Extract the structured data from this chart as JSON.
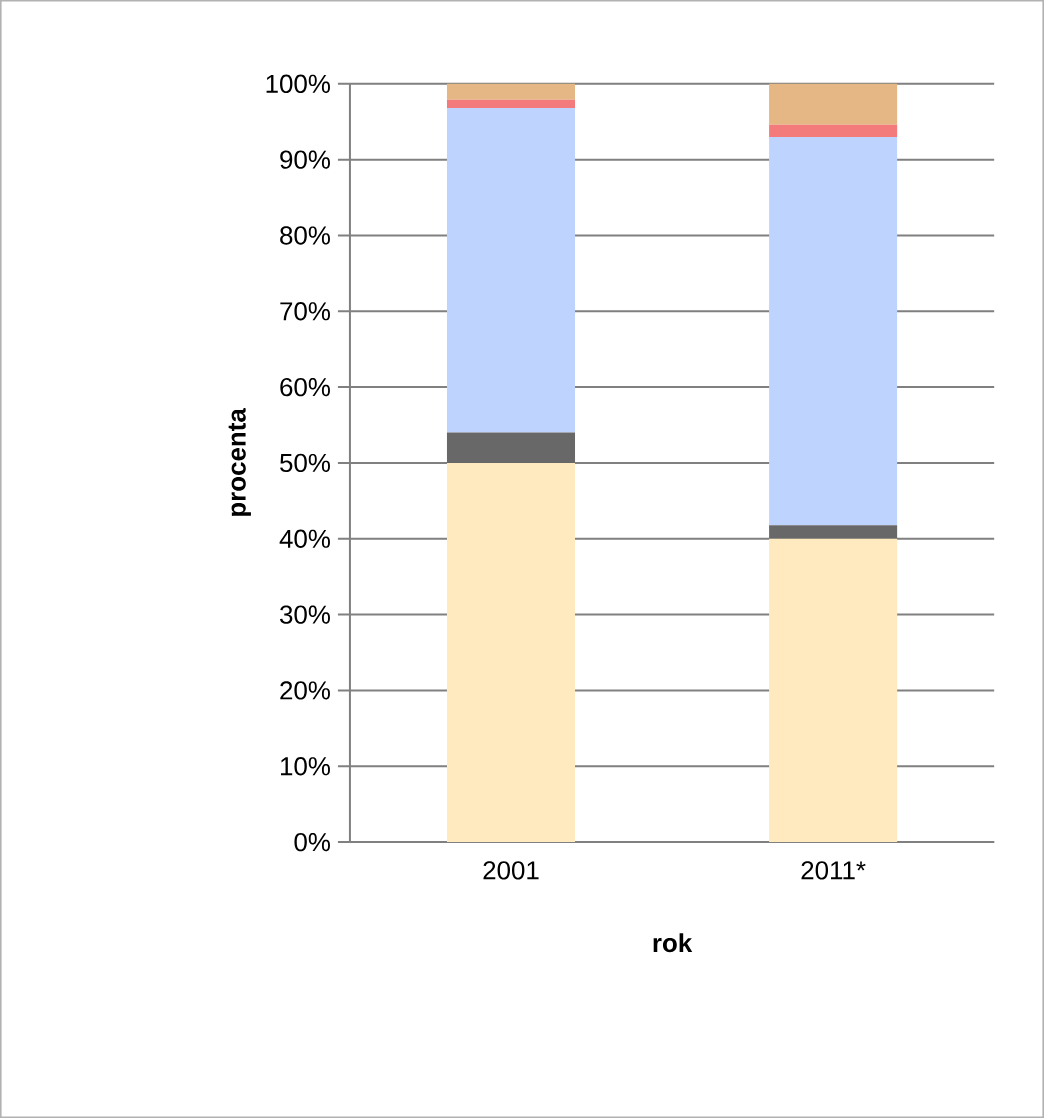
{
  "chart_data": {
    "type": "bar",
    "stacked": true,
    "xlabel": "rok",
    "ylabel": "procenta",
    "categories": [
      "2001",
      "2011*"
    ],
    "series": [
      {
        "color": "#ffe9bf",
        "values": [
          50,
          40
        ]
      },
      {
        "color": "#686868",
        "values": [
          4,
          1.8
        ]
      },
      {
        "color": "#bfd3ff",
        "values": [
          42.8,
          51.2
        ]
      },
      {
        "color": "#f47b7b",
        "values": [
          1.1,
          1.6
        ]
      },
      {
        "color": "#e5b785",
        "values": [
          2.1,
          5.4
        ]
      }
    ],
    "ylim": [
      0,
      100
    ],
    "yticks": [
      {
        "value": 0,
        "label": "0%"
      },
      {
        "value": 10,
        "label": "10%"
      },
      {
        "value": 20,
        "label": "20%"
      },
      {
        "value": 30,
        "label": "30%"
      },
      {
        "value": 40,
        "label": "40%"
      },
      {
        "value": 50,
        "label": "50%"
      },
      {
        "value": 60,
        "label": "60%"
      },
      {
        "value": 70,
        "label": "70%"
      },
      {
        "value": 80,
        "label": "80%"
      },
      {
        "value": 90,
        "label": "90%"
      },
      {
        "value": 100,
        "label": "100%"
      }
    ],
    "grid": "y"
  }
}
